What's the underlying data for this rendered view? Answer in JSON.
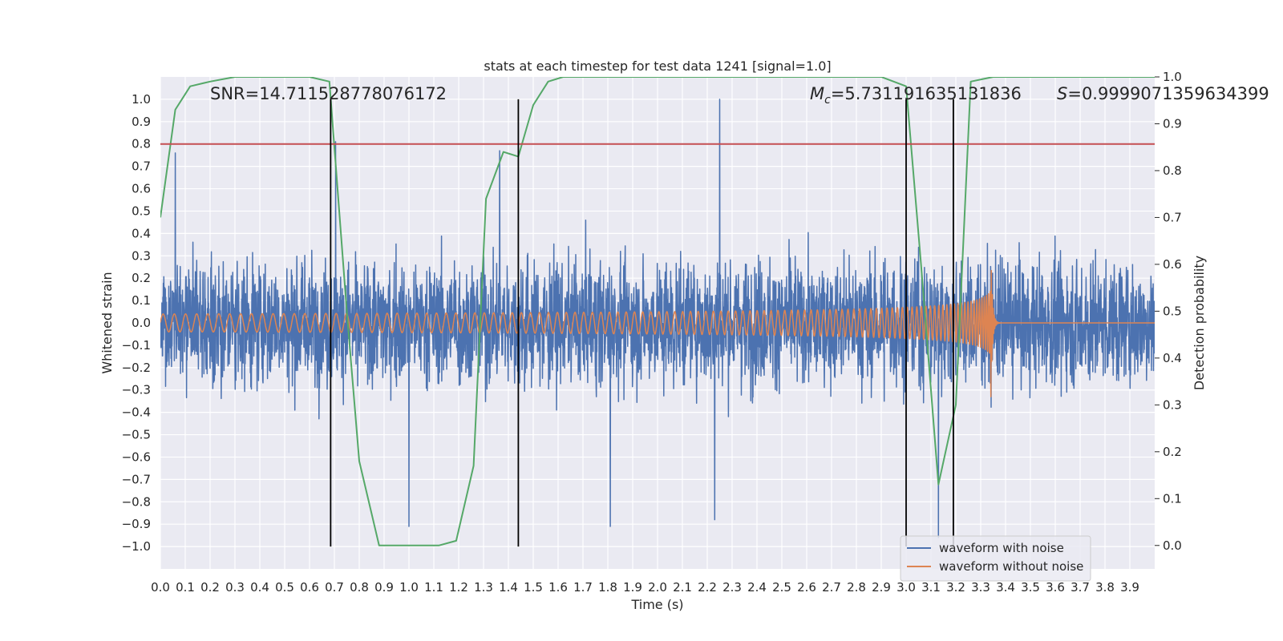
{
  "chart_data": {
    "type": "line",
    "title": "stats at each timestep for test data 1241 [signal=1.0]",
    "xlabel": "Time (s)",
    "ylabel": "Whitened strain",
    "ylabel_right": "Detection probability",
    "xlim": [
      0.0,
      4.0
    ],
    "ylim": [
      -1.1,
      1.1
    ],
    "ylim_right": [
      -0.05,
      1.0
    ],
    "x_ticks": [
      "0.0",
      "0.1",
      "0.2",
      "0.3",
      "0.4",
      "0.5",
      "0.6",
      "0.7",
      "0.8",
      "0.9",
      "1.0",
      "1.1",
      "1.2",
      "1.3",
      "1.4",
      "1.5",
      "1.6",
      "1.7",
      "1.8",
      "1.9",
      "2.0",
      "2.1",
      "2.2",
      "2.3",
      "2.4",
      "2.5",
      "2.6",
      "2.7",
      "2.8",
      "2.9",
      "3.0",
      "3.1",
      "3.2",
      "3.3",
      "3.4",
      "3.5",
      "3.6",
      "3.7",
      "3.8",
      "3.9"
    ],
    "y_ticks": [
      "1.0",
      "0.9",
      "0.8",
      "0.7",
      "0.6",
      "0.5",
      "0.4",
      "0.3",
      "0.2",
      "0.1",
      "0.0",
      "−0.1",
      "−0.2",
      "−0.3",
      "−0.4",
      "−0.5",
      "−0.6",
      "−0.7",
      "−0.8",
      "−0.9",
      "−1.0"
    ],
    "y_ticks_right": [
      "1.0",
      "0.9",
      "0.8",
      "0.7",
      "0.6",
      "0.5",
      "0.4",
      "0.3",
      "0.2",
      "0.1",
      "0.0"
    ],
    "grid": true,
    "legend_position": "lower-right",
    "annotations": {
      "snr": "SNR=14.711528778076172",
      "mc_symbol": "M",
      "mc_sub": "c",
      "mc_value": "=5.731191635131836",
      "s_symbol": "S",
      "s_value": "=0.9999071359634399"
    },
    "threshold_line": {
      "y": 0.8,
      "color": "#c44e52"
    },
    "vertical_markers": [
      {
        "x": 0.685,
        "y_top": 1.0,
        "y_bottom": -1.0
      },
      {
        "x": 1.44,
        "y_top": 1.0,
        "y_bottom": -1.0
      },
      {
        "x": 3.0,
        "y_top": 1.0,
        "y_bottom": -1.0
      },
      {
        "x": 3.19,
        "y_top": 1.0,
        "y_bottom": -1.0
      }
    ],
    "series": [
      {
        "name": "waveform with noise",
        "axis": "left",
        "color": "#4c72b0",
        "note": "noisy whitened strain, approx 2048 samples/s, envelope ~ +/-0.55 with spikes to ~1.0",
        "peaks": [
          [
            0.06,
            0.76
          ],
          [
            0.705,
            0.81
          ],
          [
            1.365,
            0.77
          ],
          [
            2.25,
            1.0
          ],
          [
            1.0,
            -0.91
          ],
          [
            1.81,
            -0.91
          ],
          [
            2.23,
            -0.88
          ],
          [
            3.13,
            -0.96
          ]
        ]
      },
      {
        "name": "waveform without noise",
        "axis": "left",
        "color": "#dd8452",
        "t_merger": 3.34,
        "amp_start": 0.04,
        "amp_peak": 0.39,
        "freq_start": 22
      },
      {
        "name": "detection probability",
        "axis": "right",
        "color": "#55a868",
        "x": [
          0.0,
          0.06,
          0.12,
          0.2,
          0.3,
          0.4,
          0.5,
          0.6,
          0.68,
          0.75,
          0.8,
          0.88,
          1.0,
          1.12,
          1.19,
          1.26,
          1.31,
          1.38,
          1.44,
          1.5,
          1.56,
          1.62,
          1.8,
          2.0,
          2.5,
          2.9,
          2.95,
          3.0,
          3.06,
          3.13,
          3.2,
          3.26,
          3.35,
          3.5,
          4.0
        ],
        "y": [
          0.7,
          0.93,
          0.98,
          0.99,
          1.0,
          1.0,
          1.0,
          1.0,
          0.99,
          0.5,
          0.18,
          0.0,
          0.0,
          0.0,
          0.01,
          0.17,
          0.74,
          0.84,
          0.83,
          0.94,
          0.99,
          1.0,
          1.0,
          1.0,
          1.0,
          1.0,
          0.99,
          0.98,
          0.6,
          0.13,
          0.3,
          0.99,
          1.0,
          1.0,
          1.0
        ]
      }
    ]
  }
}
